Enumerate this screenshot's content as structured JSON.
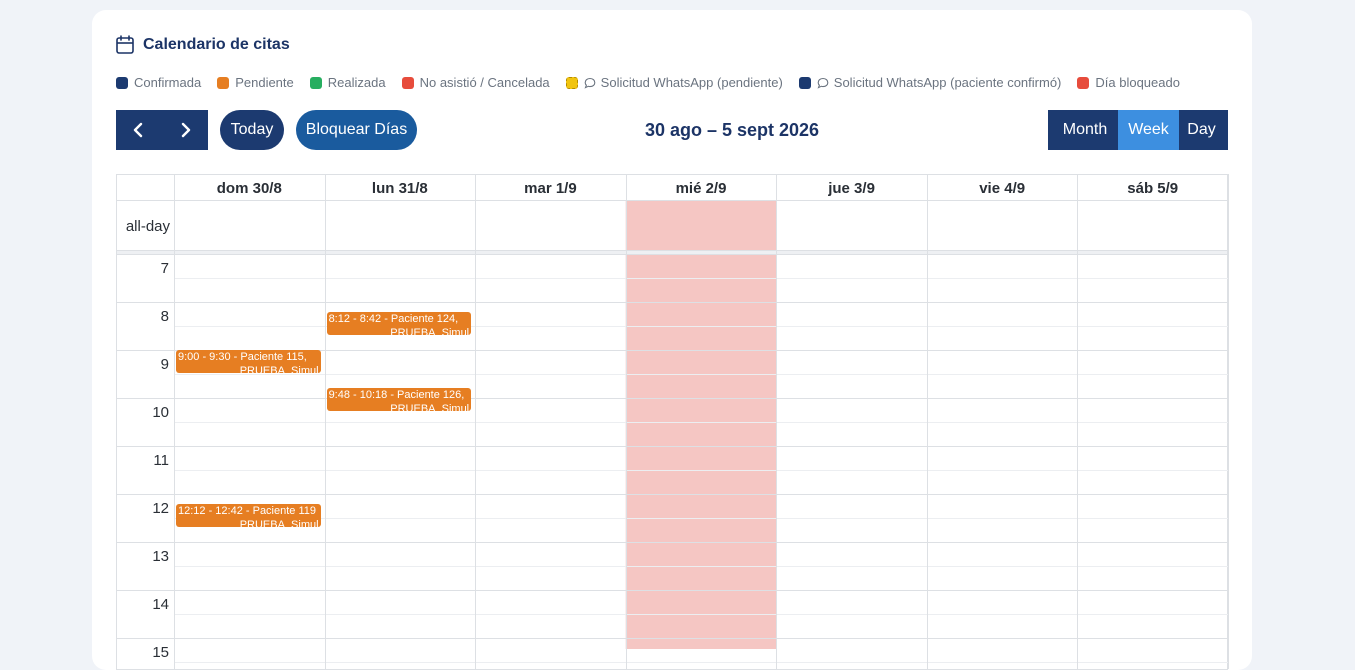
{
  "header": {
    "title": "Calendario de citas",
    "icon": "calendar-icon"
  },
  "legend": [
    {
      "label": "Confirmada",
      "color": "#1c3a70",
      "icon": null
    },
    {
      "label": "Pendiente",
      "color": "#e67e22",
      "icon": null
    },
    {
      "label": "Realizada",
      "color": "#27ae60",
      "icon": null
    },
    {
      "label": "No asistió / Cancelada",
      "color": "#e74c3c",
      "icon": null
    },
    {
      "label": "Solicitud WhatsApp (pendiente)",
      "color": "#f1c40f",
      "icon": "chat-icon"
    },
    {
      "label": "Solicitud WhatsApp (paciente confirmó)",
      "color": "#1c3a70",
      "icon": "chat-icon"
    },
    {
      "label": "Día bloqueado",
      "color": "#e74c3c",
      "icon": null
    }
  ],
  "toolbar": {
    "prev_icon": "chevron-left-icon",
    "next_icon": "chevron-right-icon",
    "today_label": "Today",
    "block_label": "Bloquear Días",
    "range_title": "30 ago – 5 sept 2026",
    "views": [
      {
        "label": "Month",
        "active": false
      },
      {
        "label": "Week",
        "active": true
      },
      {
        "label": "Day",
        "active": false
      }
    ]
  },
  "calendar": {
    "allday_label": "all-day",
    "days": [
      "dom 30/8",
      "lun 31/8",
      "mar 1/9",
      "mié 2/9",
      "jue 3/9",
      "vie 4/9",
      "sáb 5/9"
    ],
    "blocked_day_index": 3,
    "hours": [
      "7",
      "8",
      "9",
      "10",
      "11",
      "12",
      "13",
      "14",
      "15"
    ],
    "events": [
      {
        "day_index": 1,
        "start": "8:12",
        "end": "8:42",
        "line1": "8:12 - 8:42 - Paciente 124,",
        "line2": "PRUEBA_Simul",
        "status": "Pendiente"
      },
      {
        "day_index": 0,
        "start": "9:00",
        "end": "9:30",
        "line1": "9:00 - 9:30 - Paciente 115,",
        "line2": "PRUEBA_Simul",
        "status": "Pendiente"
      },
      {
        "day_index": 1,
        "start": "9:48",
        "end": "10:18",
        "line1": "9:48 - 10:18 - Paciente 126,",
        "line2": "PRUEBA_Simul",
        "status": "Pendiente"
      },
      {
        "day_index": 0,
        "start": "12:12",
        "end": "12:42",
        "line1": "12:12 - 12:42 - Paciente 119",
        "line2": "PRUEBA_Simul",
        "status": "Pendiente"
      }
    ]
  },
  "colors": {
    "primary": "#1c3a70",
    "accent": "#1a5b9e",
    "active_view": "#3d8fe0",
    "blocked_day": "#f5c6c3",
    "pending_event": "#e67e22",
    "title": "#1c3466"
  }
}
